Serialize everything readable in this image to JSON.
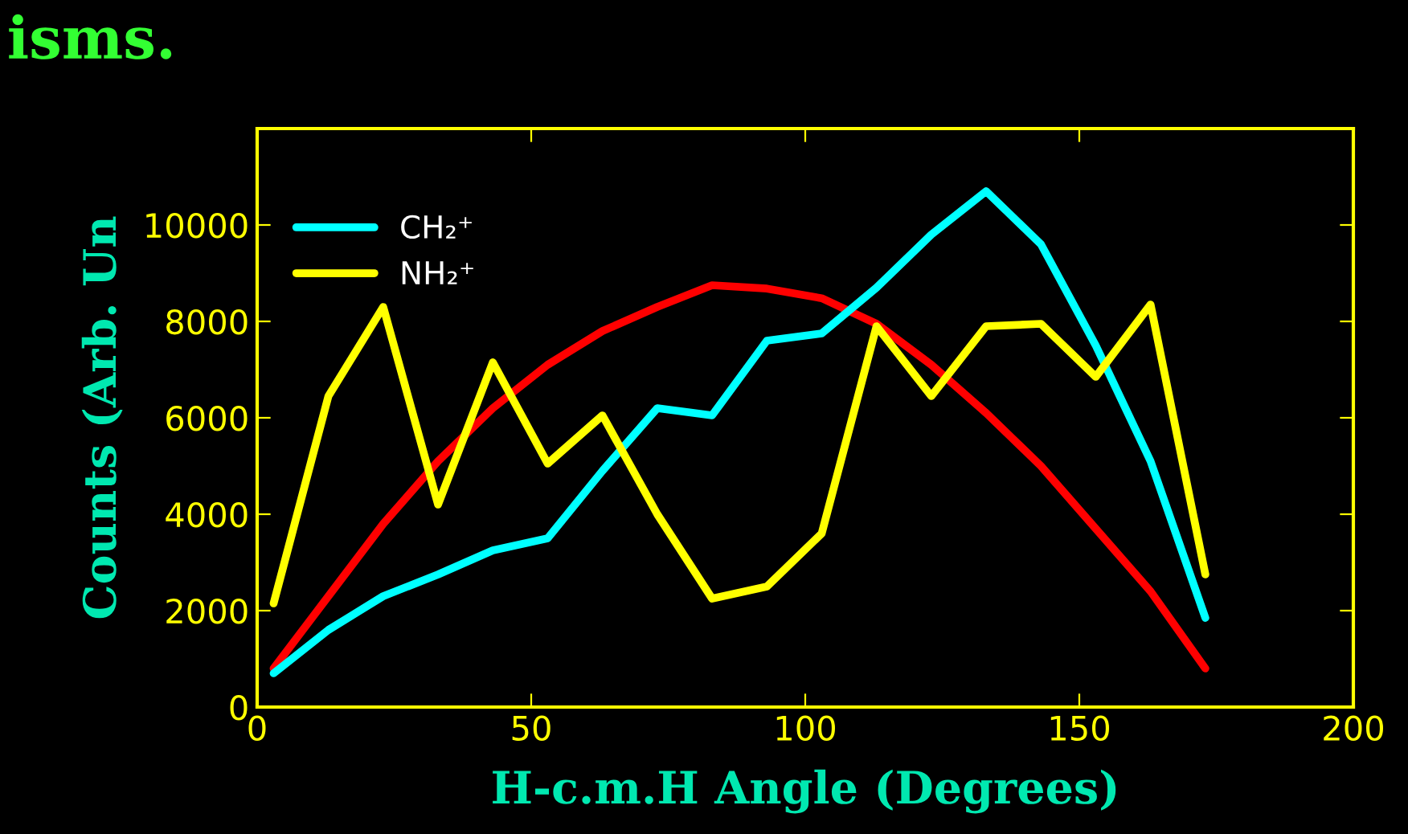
{
  "chart_data": {
    "type": "line",
    "xlabel": "H-c.m.H Angle (Degrees)",
    "ylabel": "Counts (Arb. Un",
    "annotations": [
      "isms."
    ],
    "x": [
      3,
      13,
      23,
      33,
      43,
      53,
      63,
      73,
      83,
      93,
      103,
      113,
      123,
      133,
      143,
      153,
      163,
      173
    ],
    "series": [
      {
        "color": "#ff0000",
        "values": [
          800,
          2300,
          3800,
          5100,
          6200,
          7100,
          7800,
          8300,
          8750,
          8680,
          8480,
          7950,
          7100,
          6100,
          5000,
          3700,
          2400,
          800
        ]
      },
      {
        "name": "CH₂⁺",
        "color": "#00ffff",
        "values": [
          700,
          1600,
          2300,
          2750,
          3250,
          3500,
          4900,
          6200,
          6050,
          7600,
          7750,
          8700,
          9800,
          10700,
          9600,
          7500,
          5100,
          1850
        ]
      },
      {
        "name": "NH₂⁺",
        "color": "#ffff00",
        "values": [
          2150,
          6450,
          8300,
          4200,
          7150,
          5050,
          6050,
          4000,
          2250,
          2500,
          3600,
          7900,
          6450,
          7900,
          7950,
          6850,
          8350,
          2750
        ]
      }
    ],
    "xlim": [
      0,
      200
    ],
    "xticks": [
      0,
      50,
      100,
      150,
      200
    ],
    "ylim": [
      0,
      12000
    ],
    "yticks": [
      0,
      2000,
      4000,
      6000,
      8000,
      10000
    ],
    "legend": "top left",
    "grid": false,
    "marker": "none",
    "line_style": "solid"
  }
}
